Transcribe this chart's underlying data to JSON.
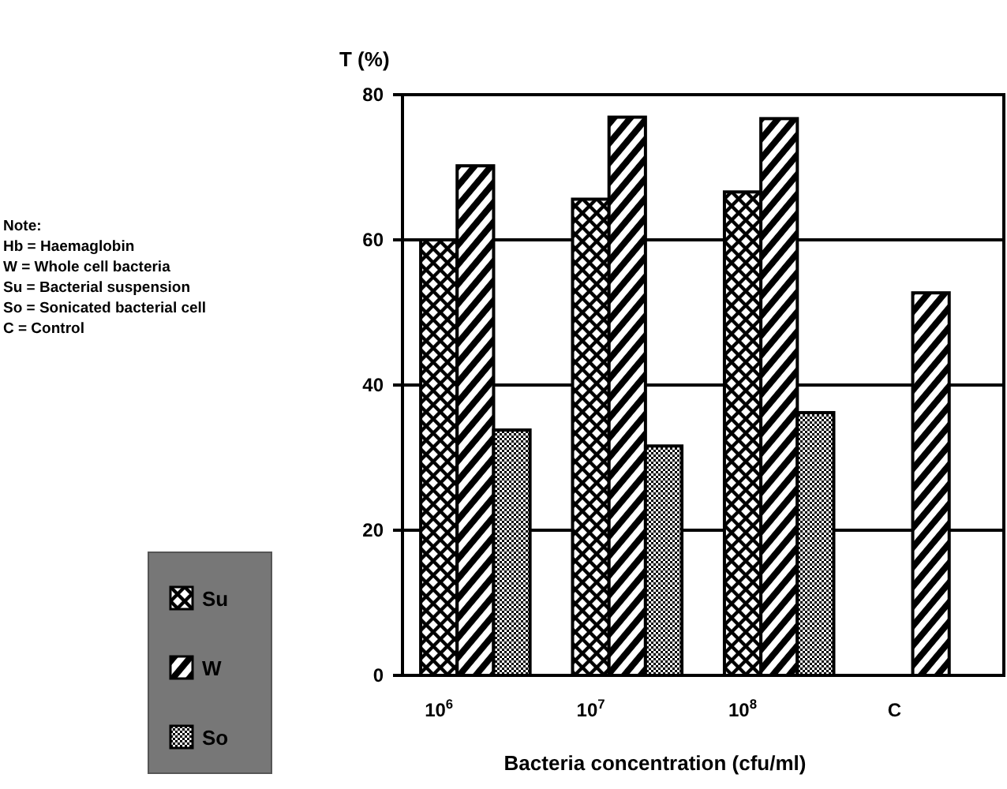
{
  "chart_data": {
    "type": "bar",
    "ylabel": "T (%)",
    "xlabel": "Bacteria concentration (cfu/ml)",
    "categories": [
      "10$^{6}$",
      "10$^{7}$",
      "10$^{8}$",
      "C"
    ],
    "series": [
      {
        "name": "Su",
        "color": "#000000",
        "values": [
          60,
          65.6,
          66.6,
          null
        ]
      },
      {
        "name": "W",
        "color": "#000000",
        "values": [
          70.2,
          76.9,
          76.7,
          52.7
        ]
      },
      {
        "name": "So",
        "color": "#000000",
        "values": [
          33.8,
          31.6,
          36.2,
          null
        ]
      }
    ],
    "ylim": [
      0,
      80
    ],
    "yticks": [
      0,
      20,
      40,
      60,
      80
    ],
    "grid": "y",
    "legend": "left",
    "annotations": [
      "Note:",
      "Hb = Haemaglobin",
      "W = Whole cell bacteria",
      "Su = Bacterial suspension",
      "So = Sonicated bacterial cell",
      "C = Control"
    ]
  }
}
